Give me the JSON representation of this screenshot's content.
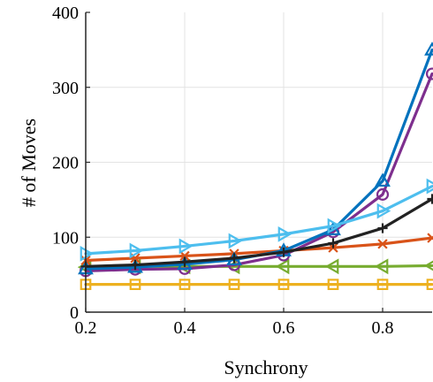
{
  "chart_data": {
    "type": "line",
    "title": "",
    "xlabel": "Synchrony",
    "ylabel": "# of Moves",
    "xlim": [
      0.2,
      0.9
    ],
    "ylim": [
      0,
      400
    ],
    "xticks": [
      0.2,
      0.4,
      0.6,
      0.8
    ],
    "yticks": [
      0,
      100,
      200,
      300,
      400
    ],
    "xtick_labels": [
      "0.2",
      "0.4",
      "0.6",
      "0.8"
    ],
    "ytick_labels": [
      "0",
      "100",
      "200",
      "300",
      "400"
    ],
    "grid": true,
    "legend": "none",
    "x": [
      0.2,
      0.3,
      0.4,
      0.5,
      0.6,
      0.7,
      0.8,
      0.9
    ],
    "series": [
      {
        "color": "#EDB120",
        "marker": "square",
        "values": [
          37,
          37,
          37,
          37,
          37,
          37,
          37,
          37
        ]
      },
      {
        "color": "#77AC30",
        "marker": "triangle-left",
        "values": [
          60,
          61,
          61,
          61,
          61,
          61,
          61,
          62
        ]
      },
      {
        "color": "#D95319",
        "marker": "x",
        "values": [
          69,
          72,
          75,
          78,
          82,
          86,
          91,
          99
        ]
      },
      {
        "color": "#7E2F8E",
        "marker": "circle",
        "values": [
          55,
          57,
          58,
          63,
          76,
          107,
          157,
          318
        ]
      },
      {
        "color": "#0072BD",
        "marker": "triangle-up",
        "values": [
          58,
          60,
          64,
          70,
          82,
          110,
          175,
          350
        ]
      },
      {
        "color": "#222222",
        "marker": "plus",
        "values": [
          61,
          63,
          67,
          72,
          80,
          92,
          112,
          151
        ]
      },
      {
        "color": "#4DBEEE",
        "marker": "triangle-right",
        "values": [
          78,
          82,
          88,
          95,
          104,
          115,
          135,
          168
        ]
      }
    ]
  }
}
